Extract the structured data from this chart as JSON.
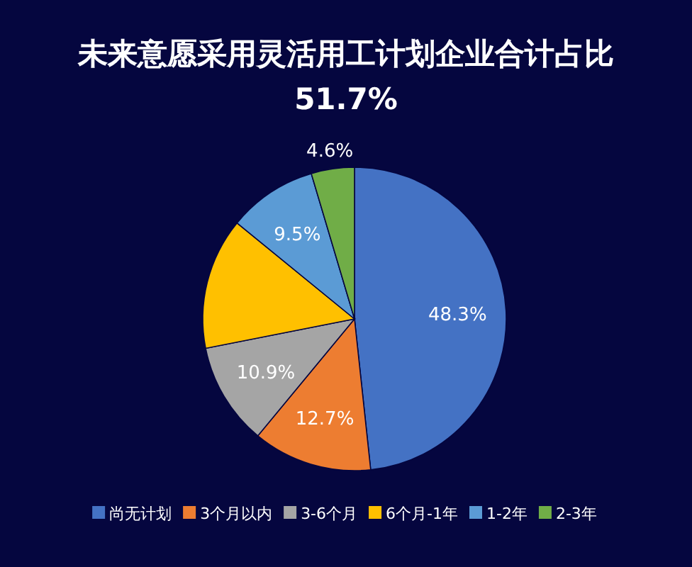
{
  "chart_data": {
    "type": "pie",
    "title": "未来意愿采用灵活用工计划企业合计占比51.7%",
    "categories": [
      "尚无计划",
      "3个月以内",
      "3-6个月",
      "6个月-1年",
      "1-2年",
      "2-3年"
    ],
    "values": [
      48.3,
      12.7,
      10.9,
      14.0,
      9.5,
      4.6
    ],
    "value_labels": [
      "48.3%",
      "12.7%",
      "10.9%",
      null,
      "9.5%",
      "4.6%"
    ],
    "colors": [
      "#4472c4",
      "#ed7d31",
      "#a5a5a5",
      "#ffc000",
      "#5b9bd5",
      "#70ad47"
    ],
    "legend": "bottom"
  }
}
